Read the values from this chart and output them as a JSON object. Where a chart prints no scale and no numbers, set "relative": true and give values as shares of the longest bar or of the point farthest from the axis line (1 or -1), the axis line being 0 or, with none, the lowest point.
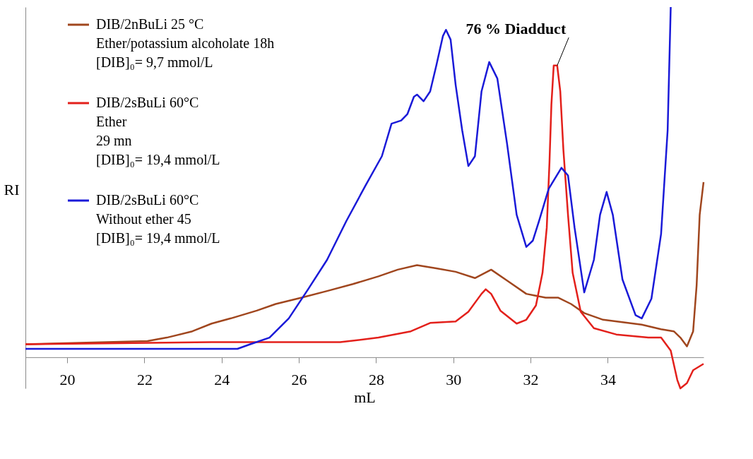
{
  "chart_data": {
    "type": "line",
    "relative": true,
    "xlabel": "mL",
    "ylabel": "RI",
    "xlim": [
      18.92,
      36.48
    ],
    "xticks": [
      20,
      22,
      24,
      26,
      28,
      30,
      32,
      34
    ],
    "tick_labels": "x",
    "grid": false,
    "legend": "top left",
    "marker": "none",
    "line_style": "solid",
    "annotations": [
      {
        "text": "76 % Diadduct",
        "x": 32.69,
        "y": 0.833
      }
    ],
    "series": [
      {
        "name": "DIB/2nBuLi 25 °C\nEther/potassium alcoholate   18h\n[DIB]₀= 9,7 mmol/L",
        "color": "#a0461e",
        "x": [
          18.92,
          22.08,
          22.58,
          23.24,
          23.74,
          24.24,
          24.91,
          25.4,
          26.07,
          26.73,
          27.4,
          28.06,
          28.56,
          29.06,
          29.56,
          30.06,
          30.56,
          30.98,
          31.39,
          31.89,
          32.39,
          32.72,
          33.05,
          33.39,
          33.88,
          34.38,
          34.88,
          35.38,
          35.71,
          35.88,
          36.05,
          36.21,
          36.3,
          36.38,
          36.48
        ],
        "values": [
          0.037,
          0.046,
          0.056,
          0.074,
          0.096,
          0.111,
          0.133,
          0.152,
          0.17,
          0.189,
          0.209,
          0.231,
          0.25,
          0.263,
          0.254,
          0.244,
          0.226,
          0.25,
          0.219,
          0.181,
          0.17,
          0.17,
          0.152,
          0.126,
          0.107,
          0.1,
          0.093,
          0.08,
          0.074,
          0.056,
          0.031,
          0.074,
          0.204,
          0.407,
          0.5
        ]
      },
      {
        "name": "DIB/2sBuLi 60°C\nEther\n29 mn\n[DIB]₀= 19,4 mmol/L",
        "color": "#e3201b",
        "x": [
          18.92,
          23.74,
          27.07,
          28.06,
          28.9,
          29.4,
          30.06,
          30.39,
          30.73,
          30.84,
          30.98,
          31.22,
          31.64,
          31.89,
          32.14,
          32.31,
          32.42,
          32.49,
          32.54,
          32.6,
          32.69,
          32.77,
          32.85,
          32.97,
          33.09,
          33.3,
          33.64,
          34.22,
          35.05,
          35.38,
          35.63,
          35.8,
          35.88,
          36.05,
          36.21,
          36.48
        ],
        "values": [
          0.037,
          0.043,
          0.043,
          0.056,
          0.074,
          0.098,
          0.102,
          0.13,
          0.181,
          0.194,
          0.181,
          0.133,
          0.096,
          0.107,
          0.148,
          0.241,
          0.37,
          0.556,
          0.722,
          0.833,
          0.833,
          0.759,
          0.593,
          0.407,
          0.241,
          0.13,
          0.083,
          0.065,
          0.056,
          0.056,
          0.019,
          -0.065,
          -0.089,
          -0.074,
          -0.037,
          -0.019
        ]
      },
      {
        "name": "DIB/2sBuLi 60°C\nWithout ether  45\n[DIB]₀= 19,4 mmol/L",
        "color": "#1a1ad8",
        "x": [
          18.92,
          24.41,
          24.74,
          25.24,
          25.74,
          26.24,
          26.73,
          27.23,
          27.73,
          28.15,
          28.4,
          28.65,
          28.81,
          28.98,
          29.06,
          29.23,
          29.4,
          29.56,
          29.73,
          29.81,
          29.93,
          30.06,
          30.23,
          30.39,
          30.56,
          30.73,
          30.93,
          31.14,
          31.39,
          31.64,
          31.89,
          32.06,
          32.22,
          32.47,
          32.8,
          32.97,
          33.14,
          33.39,
          33.64,
          33.8,
          33.97,
          34.13,
          34.38,
          34.72,
          34.88,
          35.13,
          35.38,
          35.55,
          35.63
        ],
        "values": [
          0.024,
          0.024,
          0.037,
          0.056,
          0.111,
          0.194,
          0.278,
          0.389,
          0.491,
          0.574,
          0.667,
          0.676,
          0.694,
          0.744,
          0.75,
          0.731,
          0.759,
          0.833,
          0.917,
          0.935,
          0.907,
          0.778,
          0.648,
          0.546,
          0.574,
          0.759,
          0.843,
          0.796,
          0.611,
          0.407,
          0.315,
          0.333,
          0.389,
          0.481,
          0.541,
          0.519,
          0.37,
          0.185,
          0.278,
          0.407,
          0.472,
          0.407,
          0.222,
          0.12,
          0.111,
          0.167,
          0.352,
          0.648,
          1.0
        ]
      }
    ]
  }
}
